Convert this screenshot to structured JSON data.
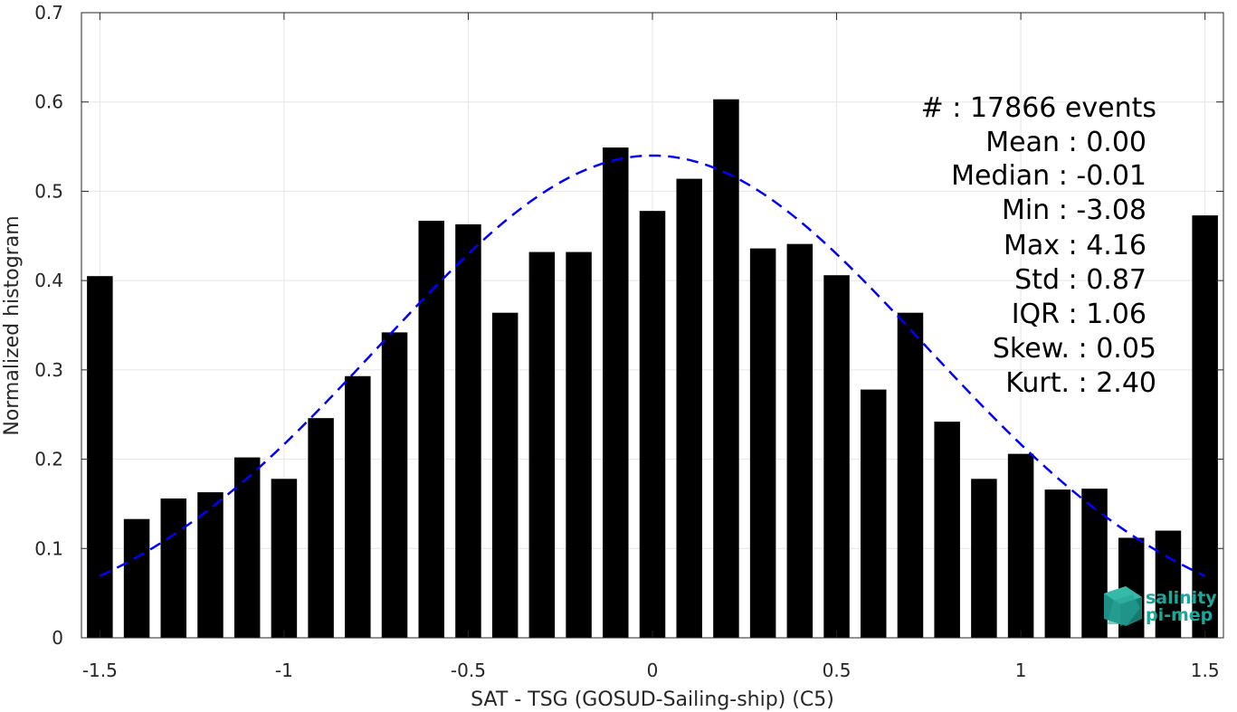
{
  "chart_data": {
    "type": "bar",
    "xlabel": "SAT - TSG (GOSUD-Sailing-ship) (C5)",
    "ylabel": "Normalized histogram",
    "xlim": [
      -1.55,
      1.55
    ],
    "ylim": [
      0,
      0.7
    ],
    "xticks": [
      -1.5,
      -1,
      -0.5,
      0,
      0.5,
      1,
      1.5
    ],
    "xtick_labels": [
      "-1.5",
      "-1",
      "-0.5",
      "0",
      "0.5",
      "1",
      "1.5"
    ],
    "yticks": [
      0,
      0.1,
      0.2,
      0.3,
      0.4,
      0.5,
      0.6,
      0.7
    ],
    "ytick_labels": [
      "0",
      "0.1",
      "0.2",
      "0.3",
      "0.4",
      "0.5",
      "0.6",
      "0.7"
    ],
    "grid": true,
    "bar_width": 0.07,
    "bars": [
      {
        "x": -1.5,
        "y": 0.405
      },
      {
        "x": -1.4,
        "y": 0.133
      },
      {
        "x": -1.3,
        "y": 0.156
      },
      {
        "x": -1.2,
        "y": 0.163
      },
      {
        "x": -1.1,
        "y": 0.202
      },
      {
        "x": -1.0,
        "y": 0.178
      },
      {
        "x": -0.9,
        "y": 0.246
      },
      {
        "x": -0.8,
        "y": 0.293
      },
      {
        "x": -0.7,
        "y": 0.342
      },
      {
        "x": -0.6,
        "y": 0.467
      },
      {
        "x": -0.5,
        "y": 0.463
      },
      {
        "x": -0.4,
        "y": 0.364
      },
      {
        "x": -0.3,
        "y": 0.432
      },
      {
        "x": -0.2,
        "y": 0.432
      },
      {
        "x": -0.1,
        "y": 0.549
      },
      {
        "x": 0.0,
        "y": 0.478
      },
      {
        "x": 0.1,
        "y": 0.514
      },
      {
        "x": 0.2,
        "y": 0.603
      },
      {
        "x": 0.3,
        "y": 0.436
      },
      {
        "x": 0.4,
        "y": 0.441
      },
      {
        "x": 0.5,
        "y": 0.406
      },
      {
        "x": 0.6,
        "y": 0.278
      },
      {
        "x": 0.7,
        "y": 0.364
      },
      {
        "x": 0.8,
        "y": 0.242
      },
      {
        "x": 0.9,
        "y": 0.178
      },
      {
        "x": 1.0,
        "y": 0.206
      },
      {
        "x": 1.1,
        "y": 0.166
      },
      {
        "x": 1.2,
        "y": 0.167
      },
      {
        "x": 1.3,
        "y": 0.112
      },
      {
        "x": 1.4,
        "y": 0.12
      },
      {
        "x": 1.5,
        "y": 0.473
      }
    ],
    "fit_curve": {
      "style": "dashed",
      "color": "#0000ff",
      "mean": 0.0,
      "std": 0.74,
      "peak": 0.54,
      "x_range": [
        -1.5,
        1.5
      ]
    },
    "bar_color": "#000000"
  },
  "stats": {
    "lines": [
      "#  : 17866 events",
      "Mean : 0.00",
      "Median : -0.01",
      "Min : -3.08",
      "Max : 4.16",
      "Std : 0.87",
      "IQR : 1.06",
      "Skew. : 0.05",
      "Kurt. : 2.40"
    ]
  },
  "logo": {
    "line1": "salinity",
    "line2": "pi-mep"
  }
}
